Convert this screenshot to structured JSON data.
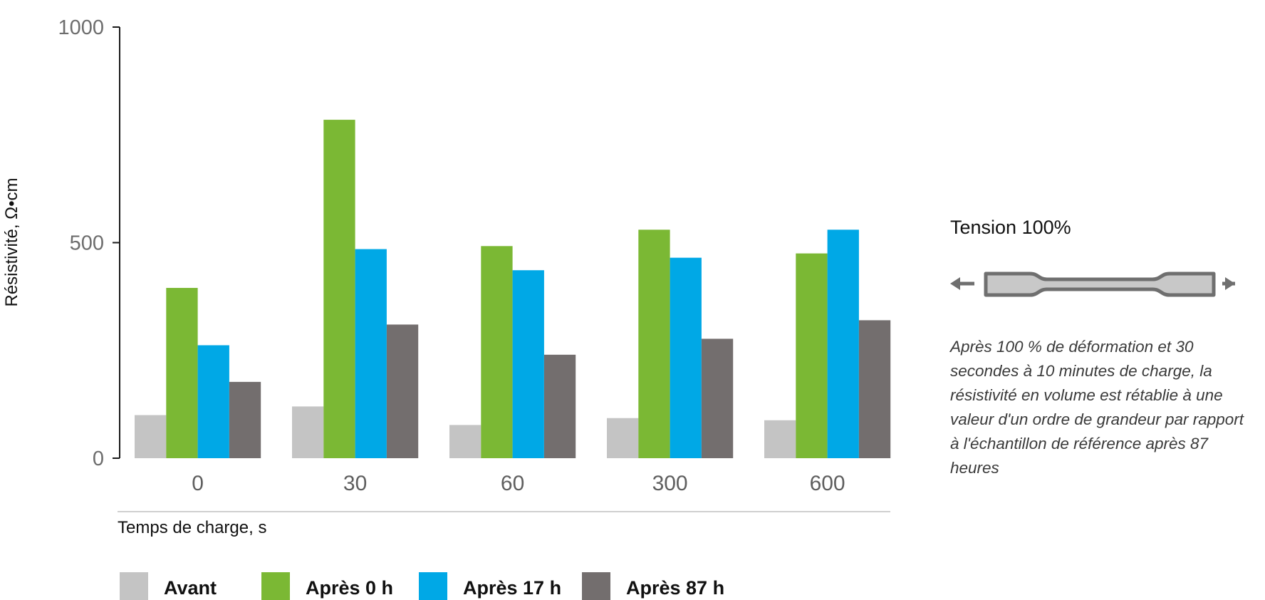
{
  "chart_data": {
    "type": "bar",
    "categories": [
      "0",
      "30",
      "60",
      "300",
      "600"
    ],
    "series": [
      {
        "name": "Avant",
        "color": "#c4c4c4",
        "values": [
          100,
          120,
          77,
          93,
          88
        ]
      },
      {
        "name": "Après 0 h",
        "color": "#7bb834",
        "values": [
          395,
          785,
          492,
          530,
          475
        ]
      },
      {
        "name": "Après 17 h",
        "color": "#00a8e6",
        "values": [
          262,
          485,
          436,
          465,
          530
        ]
      },
      {
        "name": "Après 87 h",
        "color": "#736e6e",
        "values": [
          177,
          310,
          240,
          277,
          320
        ]
      }
    ],
    "yticks": [
      "0",
      "500",
      "1000"
    ],
    "ylim": [
      0,
      1000
    ],
    "xlabel": "Temps de charge, s",
    "ylabel": "Résistivité, Ω•cm",
    "legend_position": "bottom",
    "grid": false
  },
  "side_panel": {
    "title": "Tension 100%",
    "description": "Après 100 % de déformation et 30 secondes à 10 minutes de charge, la résistivité en volume est rétablie à une valeur d'un ordre de grandeur par rapport à l'échantillon de référence après 87 heures",
    "icon": "tensile-specimen-icon"
  }
}
